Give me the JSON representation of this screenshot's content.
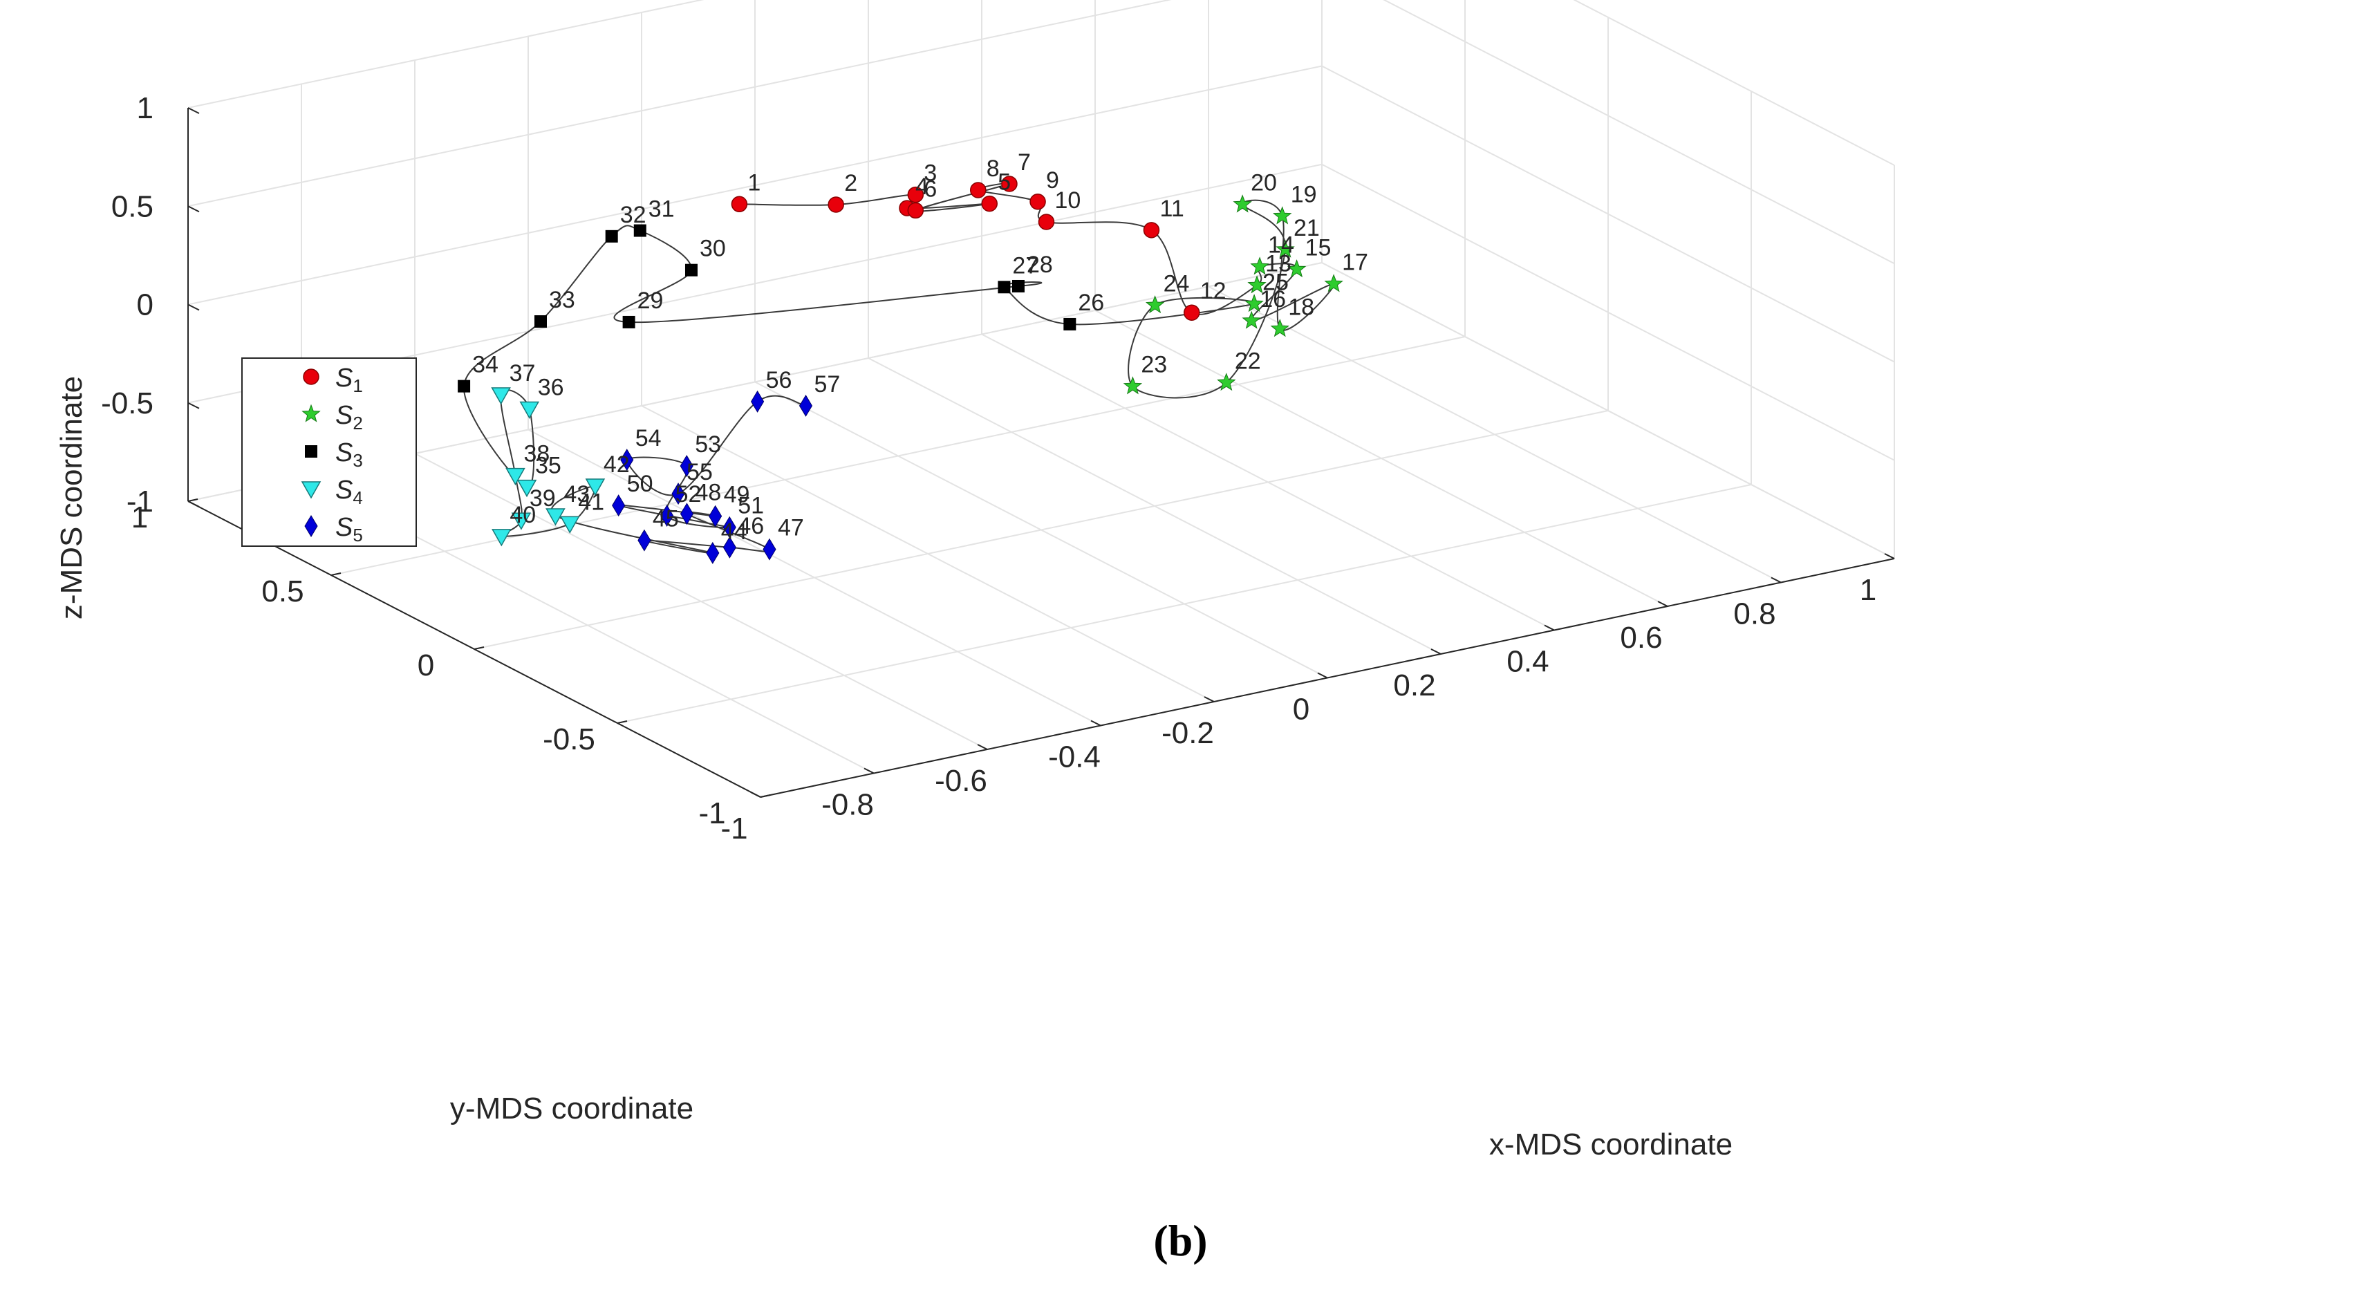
{
  "chart_data": {
    "type": "scatter",
    "xlabel": "x-MDS coordinate",
    "ylabel": "y-MDS coordinate",
    "zlabel": "z-MDS coordinate",
    "x_ticks": [
      "-1",
      "-0.8",
      "-0.6",
      "-0.4",
      "-0.2",
      "0",
      "0.2",
      "0.4",
      "0.6",
      "0.8",
      "1"
    ],
    "y_ticks": [
      "-1",
      "-0.5",
      "0",
      "0.5",
      "1"
    ],
    "z_ticks": [
      "-1",
      "-0.5",
      "0",
      "0.5",
      "1"
    ],
    "xlim": [
      -1,
      1
    ],
    "ylim": [
      -1,
      1
    ],
    "zlim": [
      -1,
      1
    ],
    "grid": true,
    "legend": {
      "position": "left",
      "items": [
        {
          "name": "S",
          "sub": "1",
          "marker": "circle",
          "color": "#e8000b"
        },
        {
          "name": "S",
          "sub": "2",
          "marker": "star",
          "color": "#2ecc2e"
        },
        {
          "name": "S",
          "sub": "3",
          "marker": "square",
          "color": "#000000"
        },
        {
          "name": "S",
          "sub": "4",
          "marker": "triangle-down",
          "color": "#2ee8e8"
        },
        {
          "name": "S",
          "sub": "5",
          "marker": "diamond",
          "color": "#0000d8"
        }
      ]
    },
    "series": [
      {
        "name": "S1",
        "points": [
          {
            "label": "1",
            "x": -0.28,
            "y": 0.5,
            "z": 0.45
          },
          {
            "label": "2",
            "x": -0.16,
            "y": 0.4,
            "z": 0.45
          },
          {
            "label": "3",
            "x": -0.06,
            "y": 0.32,
            "z": 0.5
          },
          {
            "label": "4",
            "x": -0.07,
            "y": 0.33,
            "z": 0.43
          },
          {
            "label": "5",
            "x": 0.03,
            "y": 0.24,
            "z": 0.46
          },
          {
            "label": "6",
            "x": -0.06,
            "y": 0.32,
            "z": 0.42
          },
          {
            "label": "7",
            "x": 0.06,
            "y": 0.23,
            "z": 0.55
          },
          {
            "label": "8",
            "x": 0.02,
            "y": 0.26,
            "z": 0.52
          },
          {
            "label": "9",
            "x": 0.1,
            "y": 0.21,
            "z": 0.45
          },
          {
            "label": "10",
            "x": 0.1,
            "y": 0.18,
            "z": 0.37
          },
          {
            "label": "11",
            "x": 0.25,
            "y": 0.11,
            "z": 0.29
          },
          {
            "label": "12",
            "x": 0.21,
            "y": -0.11,
            "z": 0.06
          }
        ]
      },
      {
        "name": "S2",
        "points": [
          {
            "label": "13",
            "x": 0.32,
            "y": -0.12,
            "z": 0.14
          },
          {
            "label": "14",
            "x": 0.34,
            "y": -0.09,
            "z": 0.2
          },
          {
            "label": "15",
            "x": 0.38,
            "y": -0.14,
            "z": 0.2
          },
          {
            "label": "16",
            "x": 0.27,
            "y": -0.2,
            "z": 0.05
          },
          {
            "label": "17",
            "x": 0.41,
            "y": -0.21,
            "z": 0.16
          },
          {
            "label": "18",
            "x": 0.31,
            "y": -0.22,
            "z": 0.0
          },
          {
            "label": "19",
            "x": 0.4,
            "y": -0.05,
            "z": 0.39
          },
          {
            "label": "20",
            "x": 0.35,
            "y": -0.01,
            "z": 0.45
          },
          {
            "label": "21",
            "x": 0.38,
            "y": -0.1,
            "z": 0.27
          },
          {
            "label": "22",
            "x": 0.16,
            "y": -0.33,
            "z": -0.1
          },
          {
            "label": "23",
            "x": 0.01,
            "y": -0.3,
            "z": -0.05
          },
          {
            "label": "24",
            "x": 0.12,
            "y": -0.16,
            "z": 0.19
          },
          {
            "label": "25",
            "x": 0.3,
            "y": -0.15,
            "z": 0.08
          }
        ]
      },
      {
        "name": "S3",
        "points": [
          {
            "label": "26",
            "x": 0.01,
            "y": -0.08,
            "z": 0.1
          },
          {
            "label": "27",
            "x": -0.03,
            "y": 0.07,
            "z": 0.2
          },
          {
            "label": "28",
            "x": -0.01,
            "y": 0.06,
            "z": 0.2
          },
          {
            "label": "29",
            "x": -0.49,
            "y": 0.47,
            "z": 0.0
          },
          {
            "label": "30",
            "x": -0.4,
            "y": 0.43,
            "z": 0.24
          },
          {
            "label": "31",
            "x": -0.44,
            "y": 0.53,
            "z": 0.39
          },
          {
            "label": "32",
            "x": -0.48,
            "y": 0.55,
            "z": 0.37
          },
          {
            "label": "33",
            "x": -0.58,
            "y": 0.6,
            "z": -0.04
          },
          {
            "label": "34",
            "x": -0.69,
            "y": 0.65,
            "z": -0.34
          }
        ]
      },
      {
        "name": "S4",
        "points": [
          {
            "label": "35",
            "x": -0.67,
            "y": 0.47,
            "z": -0.73
          },
          {
            "label": "36",
            "x": -0.62,
            "y": 0.56,
            "z": -0.43
          },
          {
            "label": "37",
            "x": -0.65,
            "y": 0.6,
            "z": -0.37
          },
          {
            "label": "38",
            "x": -0.67,
            "y": 0.51,
            "z": -0.7
          },
          {
            "label": "39",
            "x": -0.69,
            "y": 0.45,
            "z": -0.87
          },
          {
            "label": "40",
            "x": -0.74,
            "y": 0.42,
            "z": -0.9
          },
          {
            "label": "41",
            "x": -0.69,
            "y": 0.28,
            "z": -0.76
          },
          {
            "label": "42",
            "x": -0.61,
            "y": 0.35,
            "z": -0.67
          },
          {
            "label": "43",
            "x": -0.67,
            "y": 0.37,
            "z": -0.8
          }
        ]
      },
      {
        "name": "S5",
        "points": [
          {
            "label": "44",
            "x": -0.63,
            "y": -0.1,
            "z": -0.66
          },
          {
            "label": "45",
            "x": -0.69,
            "y": 0.02,
            "z": -0.65
          },
          {
            "label": "46",
            "x": -0.6,
            "y": -0.1,
            "z": -0.65
          },
          {
            "label": "47",
            "x": -0.55,
            "y": -0.14,
            "z": -0.66
          },
          {
            "label": "48",
            "x": -0.62,
            "y": 0.01,
            "z": -0.55
          },
          {
            "label": "49",
            "x": -0.59,
            "y": -0.03,
            "z": -0.55
          },
          {
            "label": "50",
            "x": -0.69,
            "y": 0.11,
            "z": -0.54
          },
          {
            "label": "51",
            "x": -0.58,
            "y": -0.06,
            "z": -0.59
          },
          {
            "label": "52",
            "x": -0.64,
            "y": 0.04,
            "z": -0.57
          },
          {
            "label": "53",
            "x": -0.59,
            "y": 0.07,
            "z": -0.37
          },
          {
            "label": "54",
            "x": -0.65,
            "y": 0.16,
            "z": -0.37
          },
          {
            "label": "55",
            "x": -0.62,
            "y": 0.04,
            "z": -0.47
          },
          {
            "label": "56",
            "x": -0.45,
            "y": 0.1,
            "z": -0.15
          },
          {
            "label": "57",
            "x": -0.39,
            "y": 0.05,
            "z": -0.17
          }
        ]
      }
    ]
  },
  "caption": "(b)"
}
